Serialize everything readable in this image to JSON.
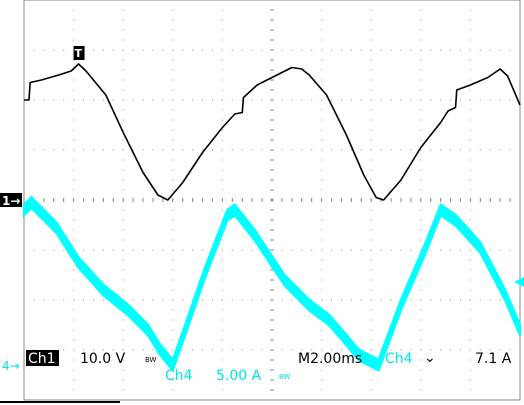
{
  "chart_data": {
    "type": "line",
    "grid": true,
    "xlim": [
      0,
      20
    ],
    "ylim": [
      -4,
      4
    ],
    "series": [
      {
        "name": "Ch1",
        "color": "#000000",
        "marker_label": "1",
        "scale_text": "10.0 V",
        "coupling": "BW",
        "points": [
          [
            0.0,
            2.0
          ],
          [
            0.2,
            2.0
          ],
          [
            0.25,
            2.35
          ],
          [
            0.7,
            2.4
          ],
          [
            1.4,
            2.5
          ],
          [
            1.9,
            2.58
          ],
          [
            2.2,
            2.72
          ],
          [
            2.5,
            2.58
          ],
          [
            3.3,
            2.1
          ],
          [
            4.0,
            1.35
          ],
          [
            4.8,
            0.55
          ],
          [
            5.4,
            0.1
          ],
          [
            5.8,
            0.0
          ],
          [
            6.4,
            0.35
          ],
          [
            7.2,
            0.95
          ],
          [
            8.0,
            1.45
          ],
          [
            8.5,
            1.72
          ],
          [
            8.8,
            1.75
          ],
          [
            8.85,
            2.05
          ],
          [
            9.4,
            2.3
          ],
          [
            10.2,
            2.5
          ],
          [
            10.8,
            2.65
          ],
          [
            11.2,
            2.62
          ],
          [
            11.5,
            2.5
          ],
          [
            12.2,
            2.1
          ],
          [
            13.0,
            1.3
          ],
          [
            13.7,
            0.5
          ],
          [
            14.2,
            0.05
          ],
          [
            14.5,
            0.0
          ],
          [
            15.2,
            0.4
          ],
          [
            16.0,
            1.05
          ],
          [
            16.8,
            1.55
          ],
          [
            17.1,
            1.78
          ],
          [
            17.4,
            1.85
          ],
          [
            17.45,
            2.2
          ],
          [
            18.0,
            2.3
          ],
          [
            18.7,
            2.45
          ],
          [
            19.2,
            2.62
          ],
          [
            19.5,
            2.48
          ],
          [
            20.0,
            1.9
          ]
        ]
      },
      {
        "name": "Ch4",
        "color": "#00ffff",
        "marker_label": "4",
        "scale_text": "5.00 A",
        "coupling": "BW",
        "band": 0.22,
        "points": [
          [
            0.0,
            -0.2
          ],
          [
            0.3,
            -0.05
          ],
          [
            1.3,
            -0.55
          ],
          [
            2.2,
            -1.25
          ],
          [
            3.2,
            -1.8
          ],
          [
            4.2,
            -2.2
          ],
          [
            5.0,
            -2.6
          ],
          [
            5.5,
            -3.0
          ],
          [
            6.0,
            -3.3
          ],
          [
            6.5,
            -2.6
          ],
          [
            7.3,
            -1.45
          ],
          [
            8.2,
            -0.3
          ],
          [
            8.5,
            -0.2
          ],
          [
            9.3,
            -0.7
          ],
          [
            10.5,
            -1.6
          ],
          [
            11.5,
            -2.1
          ],
          [
            12.3,
            -2.4
          ],
          [
            13.0,
            -2.8
          ],
          [
            13.5,
            -3.1
          ],
          [
            14.3,
            -3.3
          ],
          [
            15.2,
            -2.1
          ],
          [
            16.2,
            -0.95
          ],
          [
            16.8,
            -0.2
          ],
          [
            17.4,
            -0.4
          ],
          [
            18.4,
            -0.95
          ],
          [
            19.4,
            -1.9
          ],
          [
            20.0,
            -2.6
          ]
        ]
      }
    ],
    "trigger": {
      "marker_label": "T",
      "time_text": "M2.00ms",
      "channel": "Ch4",
      "slope_symbol": "⌄",
      "level_text": "7.1 A"
    }
  }
}
